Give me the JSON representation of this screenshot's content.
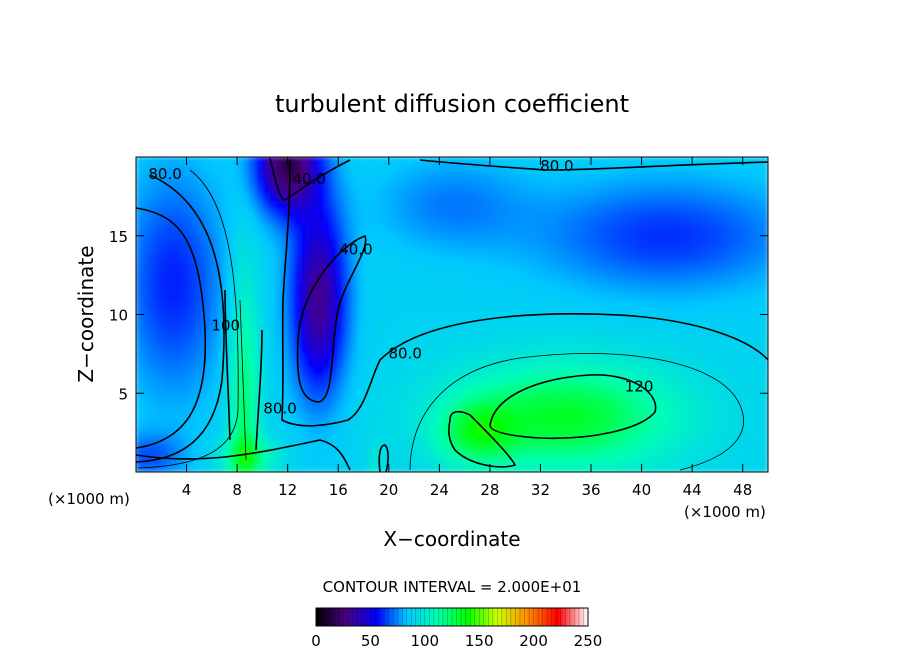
{
  "chart_data": {
    "type": "heatmap",
    "title": "turbulent diffusion coefficient",
    "xlabel": "X−coordinate",
    "ylabel": "Z−coordinate",
    "x_unit_left": "(×1000 m)",
    "x_unit_right": "(×1000 m)",
    "xlim": [
      0,
      50
    ],
    "ylim": [
      0,
      20
    ],
    "x_ticks": [
      4,
      8,
      12,
      16,
      20,
      24,
      28,
      32,
      36,
      40,
      44,
      48
    ],
    "y_ticks": [
      5,
      10,
      15
    ],
    "contour_interval_label": "CONTOUR INTERVAL = 2.000E+01",
    "contour_labels": [
      {
        "text": "80.0",
        "x": 2.3,
        "z": 18.6
      },
      {
        "text": "40.0",
        "x": 13.7,
        "z": 18.3
      },
      {
        "text": "80.0",
        "x": 33.3,
        "z": 19.1
      },
      {
        "text": "40.0",
        "x": 17.4,
        "z": 13.8
      },
      {
        "text": "100",
        "x": 7.1,
        "z": 9.0
      },
      {
        "text": "80.0",
        "x": 21.3,
        "z": 7.2
      },
      {
        "text": "120",
        "x": 39.8,
        "z": 5.1
      },
      {
        "text": "80.0",
        "x": 11.4,
        "z": 3.7
      }
    ],
    "features": [
      {
        "name": "high center",
        "x": 34,
        "z": 3.5,
        "value": 130
      },
      {
        "name": "low core",
        "x": 14.5,
        "z": 11,
        "value": 30
      },
      {
        "name": "top low",
        "x": 12,
        "z": 19.5,
        "value": 15
      },
      {
        "name": "left low",
        "x": 3,
        "z": 12,
        "value": 60
      },
      {
        "name": "right low",
        "x": 42,
        "z": 15,
        "value": 62
      },
      {
        "name": "green column",
        "x": 8.6,
        "z": 4,
        "value": 115
      }
    ],
    "colorbar": {
      "min": 0,
      "max": 250,
      "ticks": [
        "0",
        "50",
        "100",
        "150",
        "200",
        "250"
      ],
      "colormap": [
        "#000000",
        "#4b0082",
        "#0000ff",
        "#00c8ff",
        "#00ffb4",
        "#00ff00",
        "#c8ff00",
        "#ff8c00",
        "#ff0000",
        "#ffffff"
      ]
    }
  }
}
